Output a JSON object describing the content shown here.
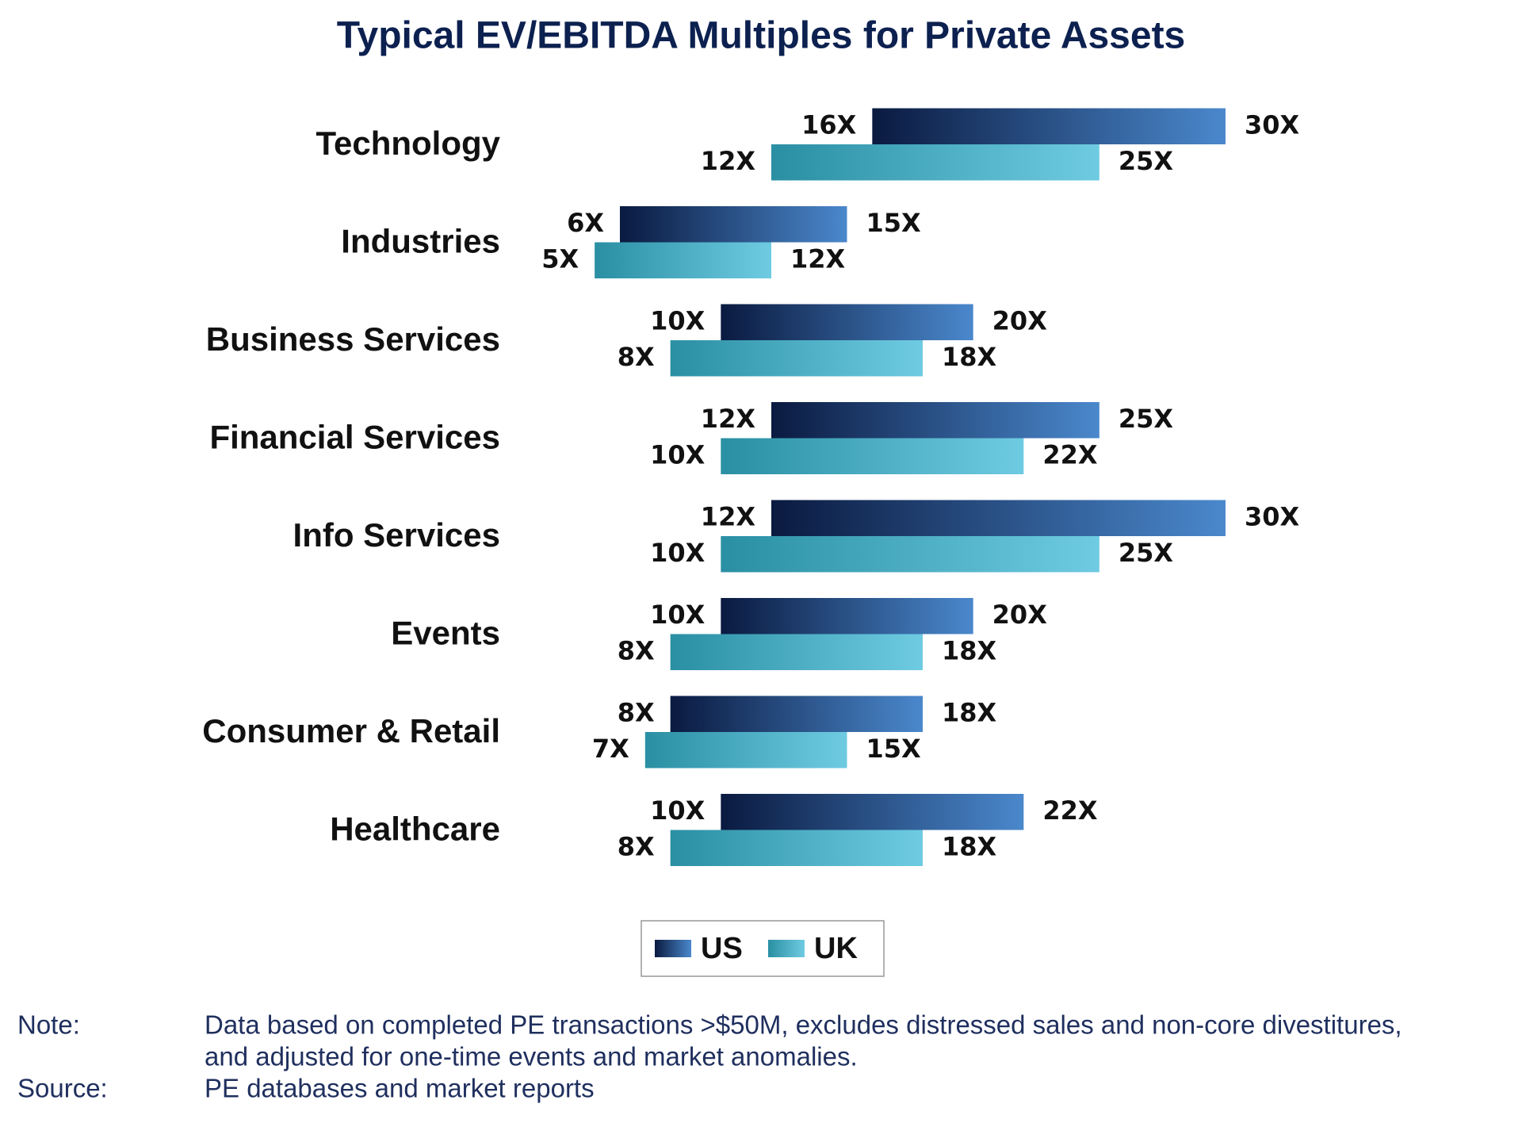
{
  "chart_data": {
    "type": "floating-bar",
    "title": "Typical EV/EBITDA Multiples for Private Assets",
    "categories": [
      "Technology",
      "Industries",
      "Business Services",
      "Financial Services",
      "Info Services",
      "Events",
      "Consumer & Retail",
      "Healthcare"
    ],
    "series": [
      {
        "name": "US",
        "color": [
          "#0a1a40",
          "#4a88cc"
        ],
        "values": [
          [
            16,
            30
          ],
          [
            6,
            15
          ],
          [
            10,
            20
          ],
          [
            12,
            25
          ],
          [
            12,
            30
          ],
          [
            10,
            20
          ],
          [
            8,
            18
          ],
          [
            10,
            22
          ]
        ],
        "value_labels": [
          [
            "16X",
            "30X"
          ],
          [
            "6X",
            "15X"
          ],
          [
            "10X",
            "20X"
          ],
          [
            "12X",
            "25X"
          ],
          [
            "12X",
            "30X"
          ],
          [
            "10X",
            "20X"
          ],
          [
            "8X",
            "18X"
          ],
          [
            "10X",
            "22X"
          ]
        ]
      },
      {
        "name": "UK",
        "color": [
          "#2a8fa3",
          "#6ecbe2"
        ],
        "values": [
          [
            12,
            25
          ],
          [
            5,
            12
          ],
          [
            8,
            18
          ],
          [
            10,
            22
          ],
          [
            10,
            25
          ],
          [
            8,
            18
          ],
          [
            7,
            15
          ],
          [
            8,
            18
          ]
        ],
        "value_labels": [
          [
            "12X",
            "25X"
          ],
          [
            "5X",
            "12X"
          ],
          [
            "8X",
            "18X"
          ],
          [
            "10X",
            "22X"
          ],
          [
            "10X",
            "25X"
          ],
          [
            "8X",
            "18X"
          ],
          [
            "7X",
            "15X"
          ],
          [
            "8X",
            "18X"
          ]
        ]
      }
    ],
    "legend": "bottom"
  },
  "notes": [
    {
      "label": "Note:",
      "text": [
        "Data based on completed PE transactions >$50M, excludes distressed sales and non-core divestitures,",
        "and adjusted for one-time events and market anomalies."
      ]
    },
    {
      "label": "Source:",
      "text": [
        "PE databases and market reports"
      ]
    }
  ]
}
